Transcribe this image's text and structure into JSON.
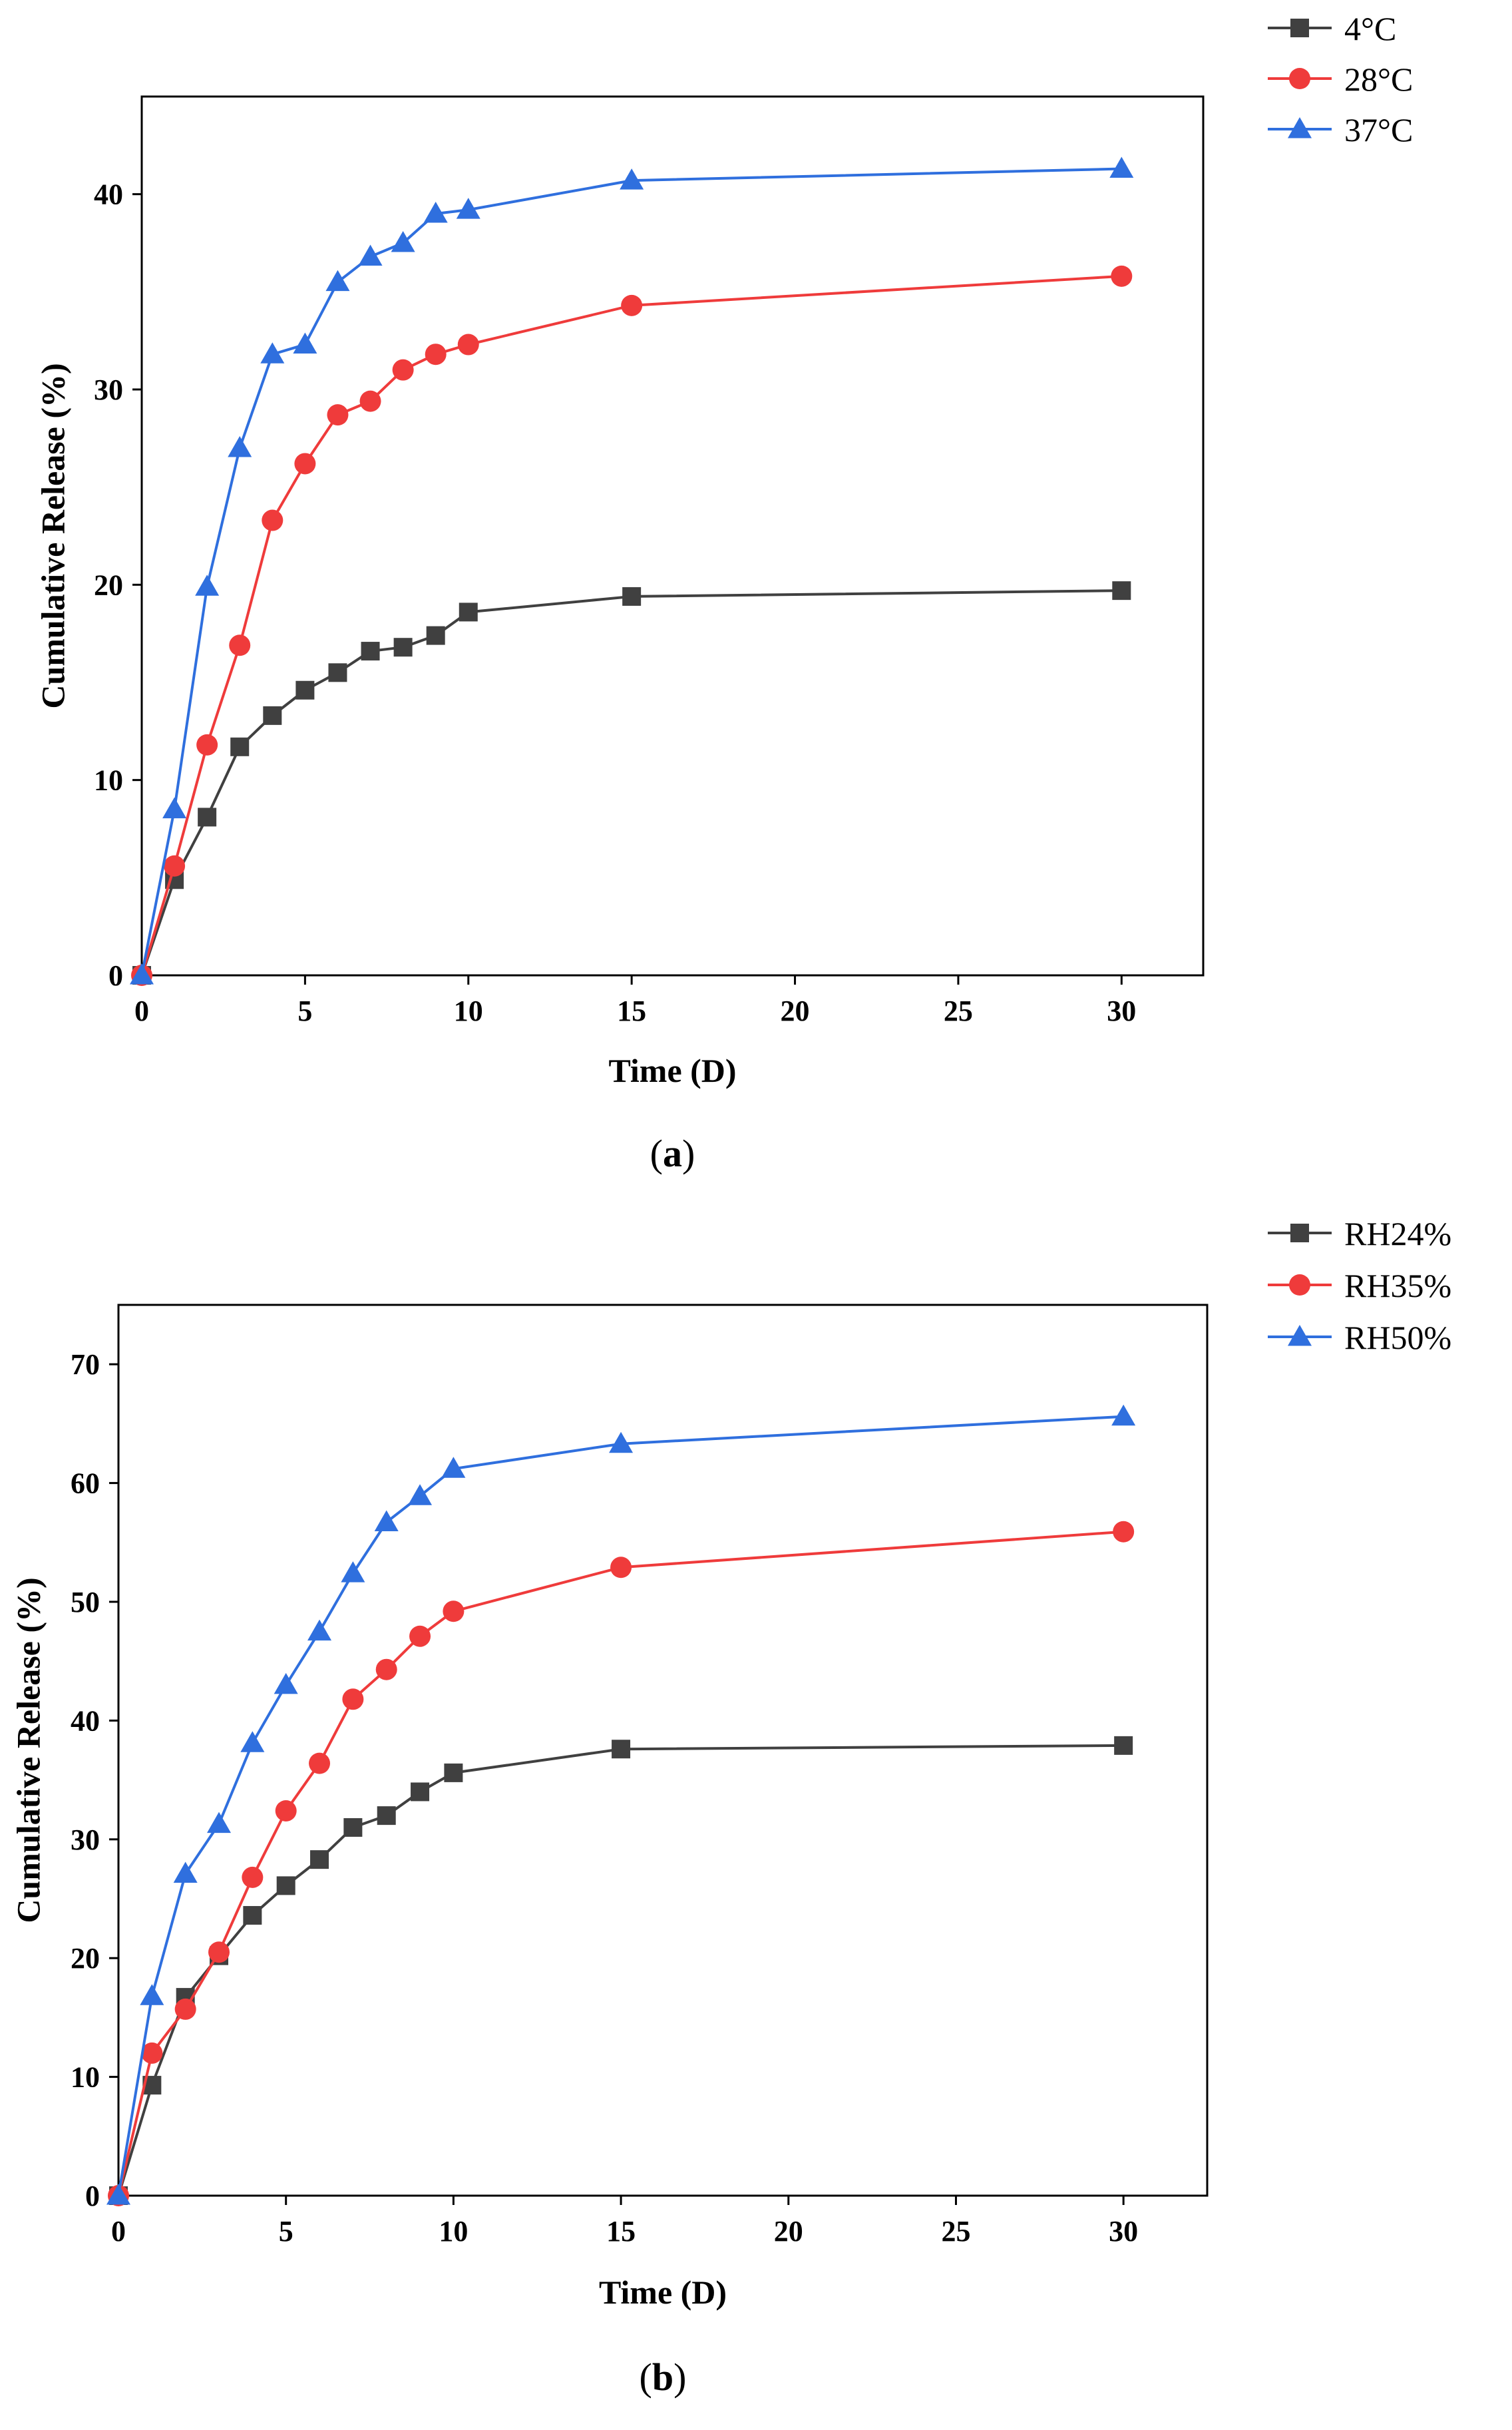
{
  "chart_data": [
    {
      "type": "line",
      "panel_label": "a",
      "xlabel": "Time (D)",
      "ylabel": "Cumulative Release (%)",
      "xlim": [
        0,
        32.5
      ],
      "ylim": [
        0,
        45
      ],
      "xticks": [
        0,
        5,
        10,
        15,
        20,
        25,
        30
      ],
      "yticks": [
        0,
        10,
        20,
        30,
        40
      ],
      "legend_position": "top-right",
      "series": [
        {
          "name": "4°C",
          "color": "#404040",
          "marker": "square",
          "x": [
            0,
            1,
            2,
            3,
            4,
            5,
            6,
            7,
            8,
            9,
            10,
            15,
            30
          ],
          "y": [
            0,
            4.9,
            8.1,
            11.7,
            13.3,
            14.6,
            15.5,
            16.6,
            16.8,
            17.4,
            18.6,
            19.4,
            19.7
          ]
        },
        {
          "name": "28°C",
          "color": "#ef3b3b",
          "marker": "circle",
          "x": [
            0,
            1,
            2,
            3,
            4,
            5,
            6,
            7,
            8,
            9,
            10,
            15,
            30
          ],
          "y": [
            0,
            5.6,
            11.8,
            16.9,
            23.3,
            26.2,
            28.7,
            29.4,
            31.0,
            31.8,
            32.3,
            34.3,
            35.8
          ]
        },
        {
          "name": "37°C",
          "color": "#2f6fde",
          "marker": "triangle",
          "x": [
            0,
            1,
            2,
            3,
            4,
            5,
            6,
            7,
            8,
            9,
            10,
            15,
            30
          ],
          "y": [
            0,
            8.5,
            19.9,
            27.0,
            31.8,
            32.3,
            35.5,
            36.8,
            37.5,
            39.0,
            39.2,
            40.7,
            41.3
          ]
        }
      ]
    },
    {
      "type": "line",
      "panel_label": "b",
      "xlabel": "Time (D)",
      "ylabel": "Cumulative Release (%)",
      "xlim": [
        0,
        32.5
      ],
      "ylim": [
        0,
        75
      ],
      "xticks": [
        0,
        5,
        10,
        15,
        20,
        25,
        30
      ],
      "yticks": [
        0,
        10,
        20,
        30,
        40,
        50,
        60,
        70
      ],
      "legend_position": "top-right",
      "series": [
        {
          "name": "RH24%",
          "color": "#404040",
          "marker": "square",
          "x": [
            0,
            1,
            2,
            3,
            4,
            5,
            6,
            7,
            8,
            9,
            10,
            15,
            30
          ],
          "y": [
            0,
            9.3,
            16.7,
            20.2,
            23.6,
            26.1,
            28.3,
            31.0,
            32.0,
            34.0,
            35.6,
            37.6,
            37.9
          ]
        },
        {
          "name": "RH35%",
          "color": "#ef3b3b",
          "marker": "circle",
          "x": [
            0,
            1,
            2,
            3,
            4,
            5,
            6,
            7,
            8,
            9,
            10,
            15,
            30
          ],
          "y": [
            0,
            12.0,
            15.7,
            20.5,
            26.8,
            32.4,
            36.4,
            41.8,
            44.3,
            47.1,
            49.2,
            52.9,
            55.9
          ]
        },
        {
          "name": "RH50%",
          "color": "#2f6fde",
          "marker": "triangle",
          "x": [
            0,
            1,
            2,
            3,
            4,
            5,
            6,
            7,
            8,
            9,
            10,
            15,
            30
          ],
          "y": [
            0,
            16.8,
            27.1,
            31.3,
            38.1,
            43.0,
            47.5,
            52.4,
            56.7,
            58.9,
            61.2,
            63.3,
            65.6
          ]
        }
      ]
    }
  ]
}
